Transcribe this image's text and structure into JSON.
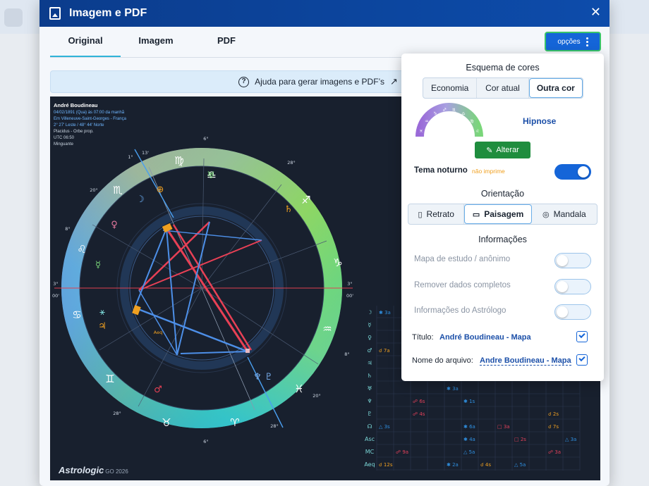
{
  "modal": {
    "title": "Imagem e PDF"
  },
  "tabs": [
    {
      "label": "Original"
    },
    {
      "label": "Imagem"
    },
    {
      "label": "PDF"
    }
  ],
  "options_button": {
    "label": "opções"
  },
  "help": {
    "text": "Ajuda para gerar imagens e PDF’s",
    "icon": "?",
    "arrow": "↗"
  },
  "chart_info": {
    "name": "André Boudineau",
    "date": "04/02/1891 (Qua) às 07:00 da manhã",
    "place": "Em Villeneuve-Saint-Georges - França",
    "coords": "2° 27' Leste / 48° 44' Norte",
    "system": "Placidus - Orbe prop.",
    "utc": "UTC 06:50",
    "moon": "Minguante"
  },
  "logo": {
    "name": "Astrologic",
    "suffix": "GO 2026"
  },
  "wheel_labels": {
    "asc_deg": "3°",
    "asc_min": "00'",
    "desc_deg": "3°",
    "desc_min": "00'",
    "mc_deg": "6°",
    "ic_deg": "6°",
    "cusps": [
      "28°",
      "20°",
      "8°",
      "28°",
      "8°",
      "20°",
      "28°",
      "6°",
      "1°",
      "13'",
      "13'"
    ],
    "aeq": "Aeq"
  },
  "aspect_grid": {
    "rows": [
      "☽",
      "☿",
      "♀",
      "♂",
      "♃",
      "♄",
      "♅",
      "♆",
      "♇",
      "☊",
      "Asc",
      "MC",
      "Aeq"
    ],
    "cells": [
      {
        "glyph": "✱",
        "label": "3a",
        "color": "#2f8fe0"
      },
      {
        "glyph": "☌",
        "label": "7a",
        "color": "#f0a020"
      },
      {
        "glyph": "✱",
        "label": "3a",
        "color": "#2f8fe0"
      },
      {
        "glyph": "☍",
        "label": "6s",
        "color": "#e0405a"
      },
      {
        "glyph": "✱",
        "label": "1s",
        "color": "#2f8fe0"
      },
      {
        "glyph": "☍",
        "label": "4s",
        "color": "#e0405a"
      },
      {
        "glyph": "☌",
        "label": "2s",
        "color": "#f0a020"
      },
      {
        "glyph": "△",
        "label": "3s",
        "color": "#2f8fe0"
      },
      {
        "glyph": "✱",
        "label": "6a",
        "color": "#2f8fe0"
      },
      {
        "glyph": "□",
        "label": "3a",
        "color": "#e0405a"
      },
      {
        "glyph": "☌",
        "label": "7s",
        "color": "#f0a020"
      },
      {
        "glyph": "✱",
        "label": "4a",
        "color": "#2f8fe0"
      },
      {
        "glyph": "□",
        "label": "2s",
        "color": "#e0405a"
      },
      {
        "glyph": "△",
        "label": "3a",
        "color": "#2f8fe0"
      },
      {
        "glyph": "☍",
        "label": "9a",
        "color": "#e0405a"
      },
      {
        "glyph": "△",
        "label": "5a",
        "color": "#2f8fe0"
      },
      {
        "glyph": "☍",
        "label": "3a",
        "color": "#e0405a"
      },
      {
        "glyph": "☌",
        "label": "12s",
        "color": "#f0a020"
      },
      {
        "glyph": "✱",
        "label": "2a",
        "color": "#2f8fe0"
      },
      {
        "glyph": "☌",
        "label": "4s",
        "color": "#f0a020"
      },
      {
        "glyph": "△",
        "label": "5a",
        "color": "#2f8fe0"
      }
    ]
  },
  "panel": {
    "color_scheme_title": "Esquema de cores",
    "scheme_options": [
      "Economia",
      "Cor atual",
      "Outra cor"
    ],
    "scheme_selected": "Outra cor",
    "scheme_name": "Hipnose",
    "alterar_label": "Alterar",
    "night_theme_label": "Tema noturno",
    "night_theme_note": "não imprime",
    "night_theme_on": true,
    "orientation_title": "Orientação",
    "orientation_options": [
      "Retrato",
      "Paisagem",
      "Mandala"
    ],
    "orientation_selected": "Paisagem",
    "info_title": "Informações",
    "toggles": [
      {
        "label": "Mapa de estudo / anônimo"
      },
      {
        "label": "Remover dados completos"
      },
      {
        "label": "Informações do Astrólogo"
      }
    ],
    "title_label": "Título:",
    "title_value": "André Boudineau - Mapa",
    "filename_label": "Nome do arquivo:",
    "filename_value": "Andre Boudineau - Mapa"
  },
  "colors": {
    "header": "#0b3c8c",
    "accent": "#1565d8",
    "green": "#1f8d3e",
    "chart_bg": "#18202e"
  }
}
